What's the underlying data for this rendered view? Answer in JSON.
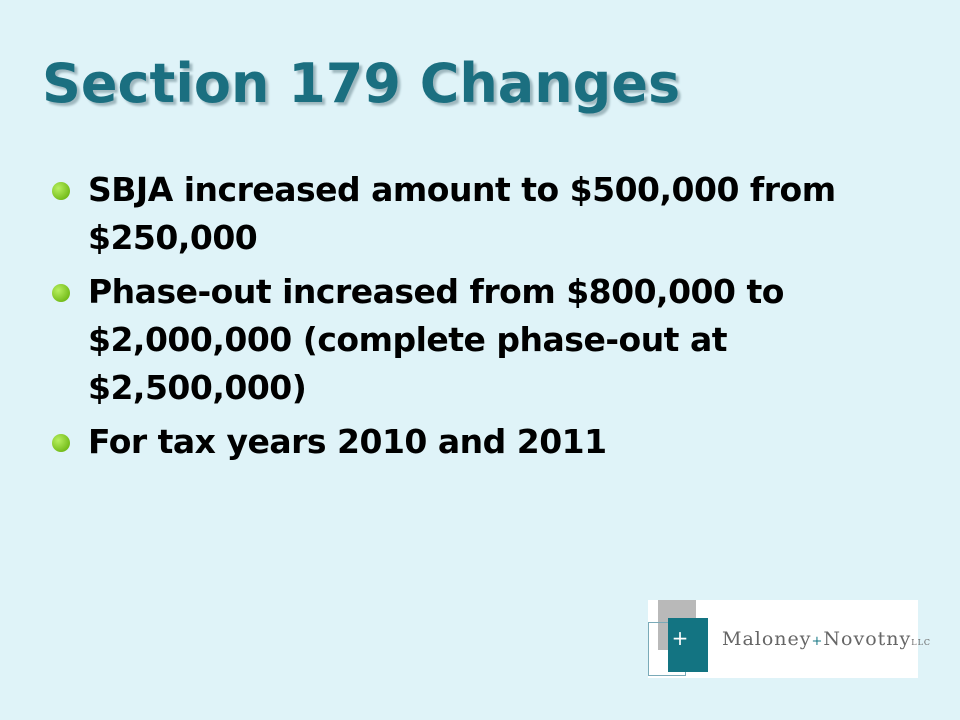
{
  "title": "Section 179 Changes",
  "bullets": [
    "SBJA increased amount to $500,000 from $250,000",
    "Phase-out increased from $800,000 to $2,000,000 (complete phase-out at $2,500,000)",
    "For tax years 2010 and 2011"
  ],
  "logo": {
    "mark": "+",
    "name_left": "Maloney",
    "joiner": "+",
    "name_right": "Novotny",
    "suffix": "LLC"
  }
}
